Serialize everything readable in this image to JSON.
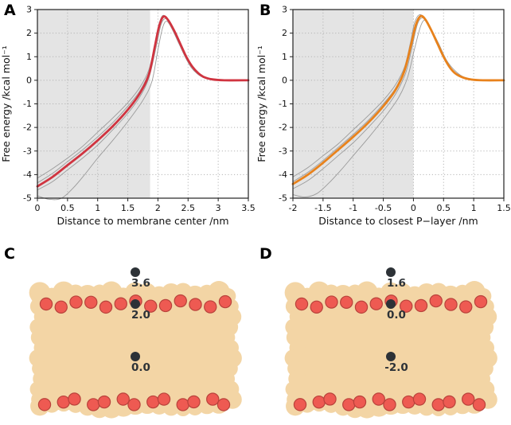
{
  "panels": {
    "a": "A",
    "b": "B",
    "c": "C",
    "d": "D"
  },
  "style": {
    "membrane_fill": "#f3d5a5",
    "phosphate_fill": "#ee5a52",
    "phosphate_stroke": "#b9423b",
    "marker_color": "#2d3237",
    "curve_red": "#d03440",
    "curve_orange": "#e8821c",
    "replica_gray": "#9b9b9b",
    "shade_gray": "#e4e4e4",
    "frame": "#222222",
    "grid": "#b5b5b5"
  },
  "chart_data": [
    {
      "id": "A",
      "type": "line",
      "xlabel": "Distance to membrane center /nm",
      "ylabel": "Free energy /kcal mol⁻¹",
      "xlim": [
        0,
        3.5
      ],
      "ylim": [
        -5,
        3
      ],
      "xticks": [
        0,
        0.5,
        1,
        1.5,
        2,
        2.5,
        3,
        3.5
      ],
      "yticks": [
        -5,
        -4,
        -3,
        -2,
        -1,
        0,
        1,
        2,
        3
      ],
      "grid": "dotted",
      "legend": "none",
      "shaded_region": {
        "from": 0,
        "to": 1.87,
        "color": "#e4e4e4"
      },
      "series": [
        {
          "name": "replica-1",
          "color": "#9b9b9b",
          "width": 0.9,
          "points": [
            [
              0,
              -4.15
            ],
            [
              0.25,
              -3.75
            ],
            [
              0.5,
              -3.3
            ],
            [
              0.75,
              -2.8
            ],
            [
              1.0,
              -2.2
            ],
            [
              1.25,
              -1.6
            ],
            [
              1.5,
              -0.95
            ],
            [
              1.7,
              -0.3
            ],
            [
              1.85,
              0.45
            ],
            [
              1.95,
              1.55
            ],
            [
              2.02,
              2.4
            ],
            [
              2.08,
              2.75
            ],
            [
              2.15,
              2.6
            ],
            [
              2.25,
              2.1
            ],
            [
              2.35,
              1.55
            ],
            [
              2.45,
              1.0
            ],
            [
              2.55,
              0.55
            ],
            [
              2.65,
              0.28
            ],
            [
              2.75,
              0.12
            ],
            [
              2.9,
              0.03
            ],
            [
              3.1,
              0
            ],
            [
              3.5,
              0
            ]
          ]
        },
        {
          "name": "replica-2",
          "color": "#9b9b9b",
          "width": 0.9,
          "points": [
            [
              0,
              -4.35
            ],
            [
              0.25,
              -3.95
            ],
            [
              0.5,
              -3.45
            ],
            [
              0.75,
              -2.95
            ],
            [
              1.0,
              -2.4
            ],
            [
              1.25,
              -1.8
            ],
            [
              1.5,
              -1.1
            ],
            [
              1.7,
              -0.45
            ],
            [
              1.85,
              0.35
            ],
            [
              1.95,
              1.5
            ],
            [
              2.03,
              2.45
            ],
            [
              2.1,
              2.7
            ],
            [
              2.18,
              2.55
            ],
            [
              2.28,
              2.05
            ],
            [
              2.4,
              1.4
            ],
            [
              2.5,
              0.85
            ],
            [
              2.6,
              0.45
            ],
            [
              2.7,
              0.2
            ],
            [
              2.8,
              0.08
            ],
            [
              3.0,
              0.01
            ],
            [
              3.2,
              0
            ],
            [
              3.5,
              0
            ]
          ]
        },
        {
          "name": "replica-3",
          "color": "#9b9b9b",
          "width": 0.9,
          "points": [
            [
              0,
              -4.65
            ],
            [
              0.25,
              -4.3
            ],
            [
              0.5,
              -3.8
            ],
            [
              0.75,
              -3.3
            ],
            [
              1.0,
              -2.75
            ],
            [
              1.25,
              -2.1
            ],
            [
              1.5,
              -1.4
            ],
            [
              1.7,
              -0.7
            ],
            [
              1.85,
              0.1
            ],
            [
              1.97,
              1.4
            ],
            [
              2.05,
              2.35
            ],
            [
              2.12,
              2.62
            ],
            [
              2.2,
              2.45
            ],
            [
              2.3,
              1.9
            ],
            [
              2.42,
              1.25
            ],
            [
              2.52,
              0.75
            ],
            [
              2.62,
              0.38
            ],
            [
              2.72,
              0.17
            ],
            [
              2.85,
              0.05
            ],
            [
              3.05,
              0.01
            ],
            [
              3.3,
              0
            ],
            [
              3.5,
              0
            ]
          ]
        },
        {
          "name": "replica-4",
          "color": "#9b9b9b",
          "width": 0.9,
          "points": [
            [
              0,
              -4.9
            ],
            [
              0.2,
              -5.05
            ],
            [
              0.4,
              -5.0
            ],
            [
              0.6,
              -4.55
            ],
            [
              0.8,
              -3.95
            ],
            [
              1.0,
              -3.3
            ],
            [
              1.25,
              -2.55
            ],
            [
              1.5,
              -1.75
            ],
            [
              1.75,
              -0.85
            ],
            [
              1.9,
              -0.05
            ],
            [
              2.0,
              1.3
            ],
            [
              2.08,
              2.25
            ],
            [
              2.15,
              2.5
            ],
            [
              2.25,
              2.1
            ],
            [
              2.35,
              1.55
            ],
            [
              2.5,
              0.8
            ],
            [
              2.65,
              0.35
            ],
            [
              2.8,
              0.1
            ],
            [
              3.0,
              0.02
            ],
            [
              3.25,
              0
            ],
            [
              3.5,
              0
            ]
          ]
        },
        {
          "name": "mean-pmf",
          "color": "#d03440",
          "width": 2.8,
          "points": [
            [
              0,
              -4.5
            ],
            [
              0.25,
              -4.1
            ],
            [
              0.5,
              -3.6
            ],
            [
              0.75,
              -3.1
            ],
            [
              1.0,
              -2.55
            ],
            [
              1.25,
              -1.95
            ],
            [
              1.5,
              -1.25
            ],
            [
              1.7,
              -0.55
            ],
            [
              1.85,
              0.25
            ],
            [
              1.95,
              1.45
            ],
            [
              2.02,
              2.3
            ],
            [
              2.09,
              2.7
            ],
            [
              2.17,
              2.55
            ],
            [
              2.27,
              2.1
            ],
            [
              2.37,
              1.55
            ],
            [
              2.47,
              1.0
            ],
            [
              2.57,
              0.58
            ],
            [
              2.67,
              0.3
            ],
            [
              2.77,
              0.13
            ],
            [
              2.9,
              0.04
            ],
            [
              3.1,
              0
            ],
            [
              3.5,
              0
            ]
          ]
        }
      ]
    },
    {
      "id": "B",
      "type": "line",
      "xlabel": "Distance to closest P−layer /nm",
      "ylabel": "Free energy /kcal mol⁻¹",
      "xlim": [
        -2,
        1.5
      ],
      "ylim": [
        -5,
        3
      ],
      "xticks": [
        -2,
        -1.5,
        -1,
        -0.5,
        0,
        0.5,
        1,
        1.5
      ],
      "yticks": [
        -5,
        -4,
        -3,
        -2,
        -1,
        0,
        1,
        2,
        3
      ],
      "grid": "dotted",
      "legend": "none",
      "shaded_region": {
        "from": -2,
        "to": 0,
        "color": "#e4e4e4"
      },
      "series": [
        {
          "name": "replica-1",
          "color": "#9b9b9b",
          "width": 0.9,
          "points": [
            [
              -2,
              -4.1
            ],
            [
              -1.75,
              -3.7
            ],
            [
              -1.5,
              -3.2
            ],
            [
              -1.25,
              -2.7
            ],
            [
              -1.0,
              -2.1
            ],
            [
              -0.75,
              -1.5
            ],
            [
              -0.5,
              -0.85
            ],
            [
              -0.3,
              -0.2
            ],
            [
              -0.15,
              0.55
            ],
            [
              -0.05,
              1.6
            ],
            [
              0.02,
              2.45
            ],
            [
              0.1,
              2.78
            ],
            [
              0.18,
              2.62
            ],
            [
              0.28,
              2.15
            ],
            [
              0.38,
              1.6
            ],
            [
              0.48,
              1.05
            ],
            [
              0.58,
              0.6
            ],
            [
              0.68,
              0.3
            ],
            [
              0.8,
              0.12
            ],
            [
              0.95,
              0.03
            ],
            [
              1.15,
              0
            ],
            [
              1.5,
              0
            ]
          ]
        },
        {
          "name": "replica-2",
          "color": "#9b9b9b",
          "width": 0.9,
          "points": [
            [
              -2,
              -4.3
            ],
            [
              -1.75,
              -3.9
            ],
            [
              -1.5,
              -3.4
            ],
            [
              -1.25,
              -2.85
            ],
            [
              -1.0,
              -2.3
            ],
            [
              -0.75,
              -1.7
            ],
            [
              -0.5,
              -1.0
            ],
            [
              -0.3,
              -0.35
            ],
            [
              -0.15,
              0.45
            ],
            [
              -0.03,
              1.55
            ],
            [
              0.05,
              2.5
            ],
            [
              0.12,
              2.72
            ],
            [
              0.2,
              2.58
            ],
            [
              0.3,
              2.08
            ],
            [
              0.42,
              1.45
            ],
            [
              0.52,
              0.9
            ],
            [
              0.62,
              0.48
            ],
            [
              0.72,
              0.22
            ],
            [
              0.85,
              0.08
            ],
            [
              1.0,
              0.02
            ],
            [
              1.2,
              0
            ],
            [
              1.5,
              0
            ]
          ]
        },
        {
          "name": "replica-3",
          "color": "#9b9b9b",
          "width": 0.9,
          "points": [
            [
              -2,
              -4.6
            ],
            [
              -1.75,
              -4.25
            ],
            [
              -1.5,
              -3.75
            ],
            [
              -1.25,
              -3.2
            ],
            [
              -1.0,
              -2.65
            ],
            [
              -0.75,
              -2.0
            ],
            [
              -0.5,
              -1.3
            ],
            [
              -0.3,
              -0.6
            ],
            [
              -0.13,
              0.3
            ],
            [
              -0.02,
              1.45
            ],
            [
              0.07,
              2.4
            ],
            [
              0.15,
              2.65
            ],
            [
              0.23,
              2.48
            ],
            [
              0.33,
              1.95
            ],
            [
              0.45,
              1.3
            ],
            [
              0.55,
              0.78
            ],
            [
              0.65,
              0.4
            ],
            [
              0.75,
              0.18
            ],
            [
              0.9,
              0.05
            ],
            [
              1.1,
              0.01
            ],
            [
              1.35,
              0
            ],
            [
              1.5,
              0
            ]
          ]
        },
        {
          "name": "replica-4",
          "color": "#9b9b9b",
          "width": 0.9,
          "points": [
            [
              -2,
              -4.85
            ],
            [
              -1.8,
              -4.95
            ],
            [
              -1.6,
              -4.8
            ],
            [
              -1.4,
              -4.35
            ],
            [
              -1.2,
              -3.8
            ],
            [
              -1.0,
              -3.2
            ],
            [
              -0.75,
              -2.45
            ],
            [
              -0.5,
              -1.65
            ],
            [
              -0.25,
              -0.75
            ],
            [
              -0.1,
              0.1
            ],
            [
              0.02,
              1.35
            ],
            [
              0.12,
              2.3
            ],
            [
              0.2,
              2.55
            ],
            [
              0.3,
              2.15
            ],
            [
              0.42,
              1.55
            ],
            [
              0.55,
              0.85
            ],
            [
              0.7,
              0.38
            ],
            [
              0.85,
              0.12
            ],
            [
              1.05,
              0.02
            ],
            [
              1.3,
              0
            ],
            [
              1.5,
              0
            ]
          ]
        },
        {
          "name": "mean-pmf",
          "color": "#e8821c",
          "width": 2.8,
          "points": [
            [
              -2,
              -4.4
            ],
            [
              -1.75,
              -4.0
            ],
            [
              -1.5,
              -3.5
            ],
            [
              -1.25,
              -2.95
            ],
            [
              -1.0,
              -2.4
            ],
            [
              -0.75,
              -1.8
            ],
            [
              -0.5,
              -1.1
            ],
            [
              -0.3,
              -0.42
            ],
            [
              -0.15,
              0.4
            ],
            [
              -0.04,
              1.5
            ],
            [
              0.04,
              2.35
            ],
            [
              0.12,
              2.72
            ],
            [
              0.2,
              2.57
            ],
            [
              0.3,
              2.1
            ],
            [
              0.4,
              1.55
            ],
            [
              0.5,
              1.0
            ],
            [
              0.6,
              0.56
            ],
            [
              0.7,
              0.28
            ],
            [
              0.82,
              0.12
            ],
            [
              0.97,
              0.03
            ],
            [
              1.15,
              0
            ],
            [
              1.5,
              0
            ]
          ]
        }
      ]
    }
  ],
  "membranes": [
    {
      "id": "C",
      "markers": [
        {
          "text": "3.6",
          "x": 170,
          "y": 40
        },
        {
          "text": "2.0",
          "x": 170,
          "y": 80
        },
        {
          "text": "0.0",
          "x": 170,
          "y": 146
        }
      ]
    },
    {
      "id": "D",
      "markers": [
        {
          "text": "1.6",
          "x": 170,
          "y": 40
        },
        {
          "text": "0.0",
          "x": 170,
          "y": 80
        },
        {
          "text": "-2.0",
          "x": 170,
          "y": 146
        }
      ]
    }
  ]
}
